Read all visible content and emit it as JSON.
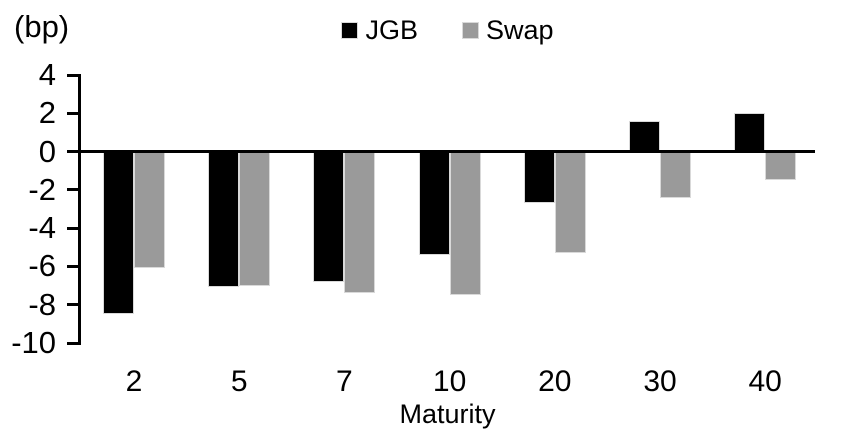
{
  "chart_data": {
    "type": "bar",
    "title": "",
    "xlabel": "Maturity",
    "ylabel": "(bp)",
    "categories": [
      "2",
      "5",
      "7",
      "10",
      "20",
      "30",
      "40"
    ],
    "series": [
      {
        "name": "JGB",
        "color": "#000000",
        "values": [
          -8.5,
          -7.1,
          -6.8,
          -5.4,
          -2.7,
          1.6,
          2.0
        ]
      },
      {
        "name": "Swap",
        "color": "#9a9a9a",
        "values": [
          -6.1,
          -7.0,
          -7.4,
          -7.5,
          -5.3,
          -2.4,
          -1.5
        ]
      }
    ],
    "ylim": [
      -10,
      4
    ],
    "yticks": [
      4,
      2,
      0,
      -2,
      -4,
      -6,
      -8,
      -10
    ],
    "grid": false,
    "legend_position": "top",
    "axis_color": "#000000",
    "bar_border_color": "#d9d9d9"
  }
}
